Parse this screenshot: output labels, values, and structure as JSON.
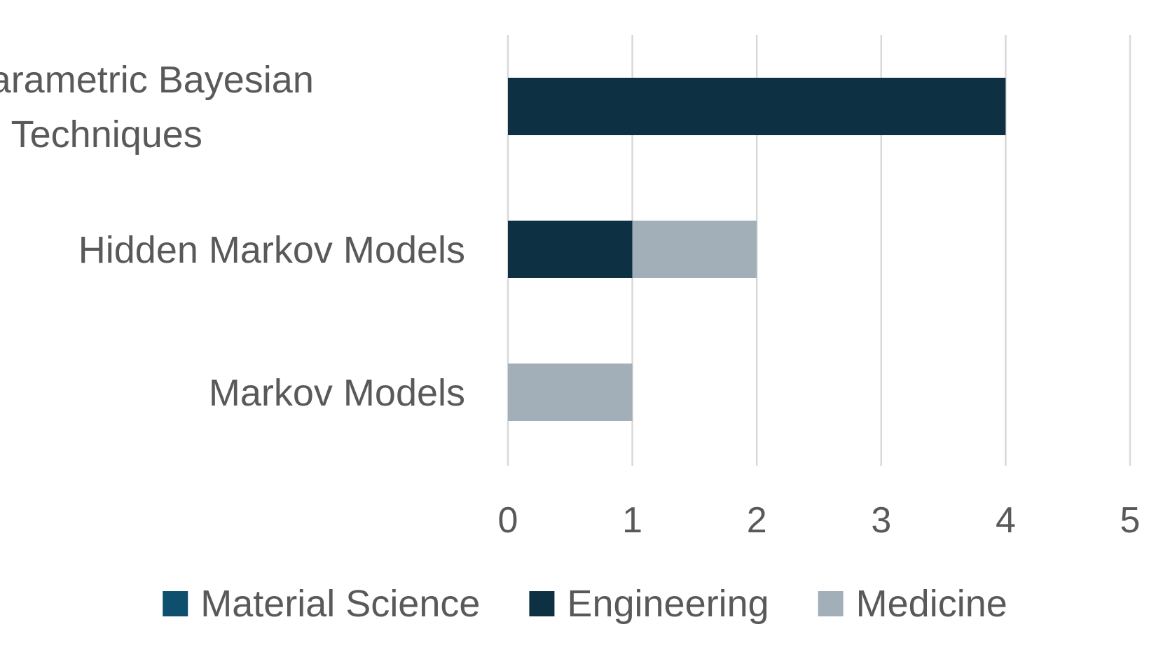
{
  "chart_data": {
    "type": "bar",
    "orientation": "horizontal",
    "stacked": true,
    "categories": [
      "Nonparametric Bayesian Techniques",
      "Hidden Markov Models",
      "Markov Models"
    ],
    "category_lines": [
      [
        "Nonparametric Bayesian",
        "Techniques"
      ],
      [
        "Hidden Markov Models"
      ],
      [
        "Markov Models"
      ]
    ],
    "series": [
      {
        "name": "Material Science",
        "color": "#0e4f6e",
        "values": [
          0,
          0,
          0
        ]
      },
      {
        "name": "Engineering",
        "color": "#0d3143",
        "values": [
          4,
          1,
          0
        ]
      },
      {
        "name": "Medicine",
        "color": "#a2afb9",
        "values": [
          0,
          1,
          1
        ]
      }
    ],
    "xlim": [
      0,
      5
    ],
    "ticks": [
      "0",
      "1",
      "2",
      "3",
      "4",
      "5"
    ],
    "grid": true,
    "legend_position": "bottom",
    "title": "",
    "xlabel": "",
    "ylabel": ""
  }
}
